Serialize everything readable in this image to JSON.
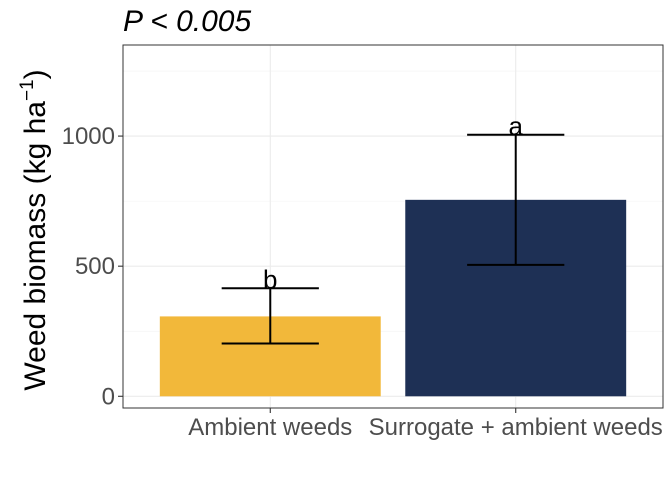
{
  "chart_data": {
    "type": "bar",
    "title": "P < 0.005",
    "xlabel": "",
    "ylabel": "Weed biomass (kg ha",
    "ylabel_superscript": "−1",
    "ylabel_close": ")",
    "categories": [
      "Ambient weeds",
      "Surrogate + ambient weeds"
    ],
    "values": [
      307,
      755
    ],
    "error_low": [
      203,
      505
    ],
    "error_high": [
      415,
      1005
    ],
    "significance_letters": [
      "b",
      "a"
    ],
    "bar_colors": [
      "#F2B83A",
      "#1E3055"
    ],
    "ylim": [
      -45,
      1350
    ],
    "y_ticks": [
      0,
      500,
      1000
    ],
    "y_tick_labels": [
      "0",
      "500",
      "1000"
    ],
    "grid": true,
    "legend": "none"
  }
}
